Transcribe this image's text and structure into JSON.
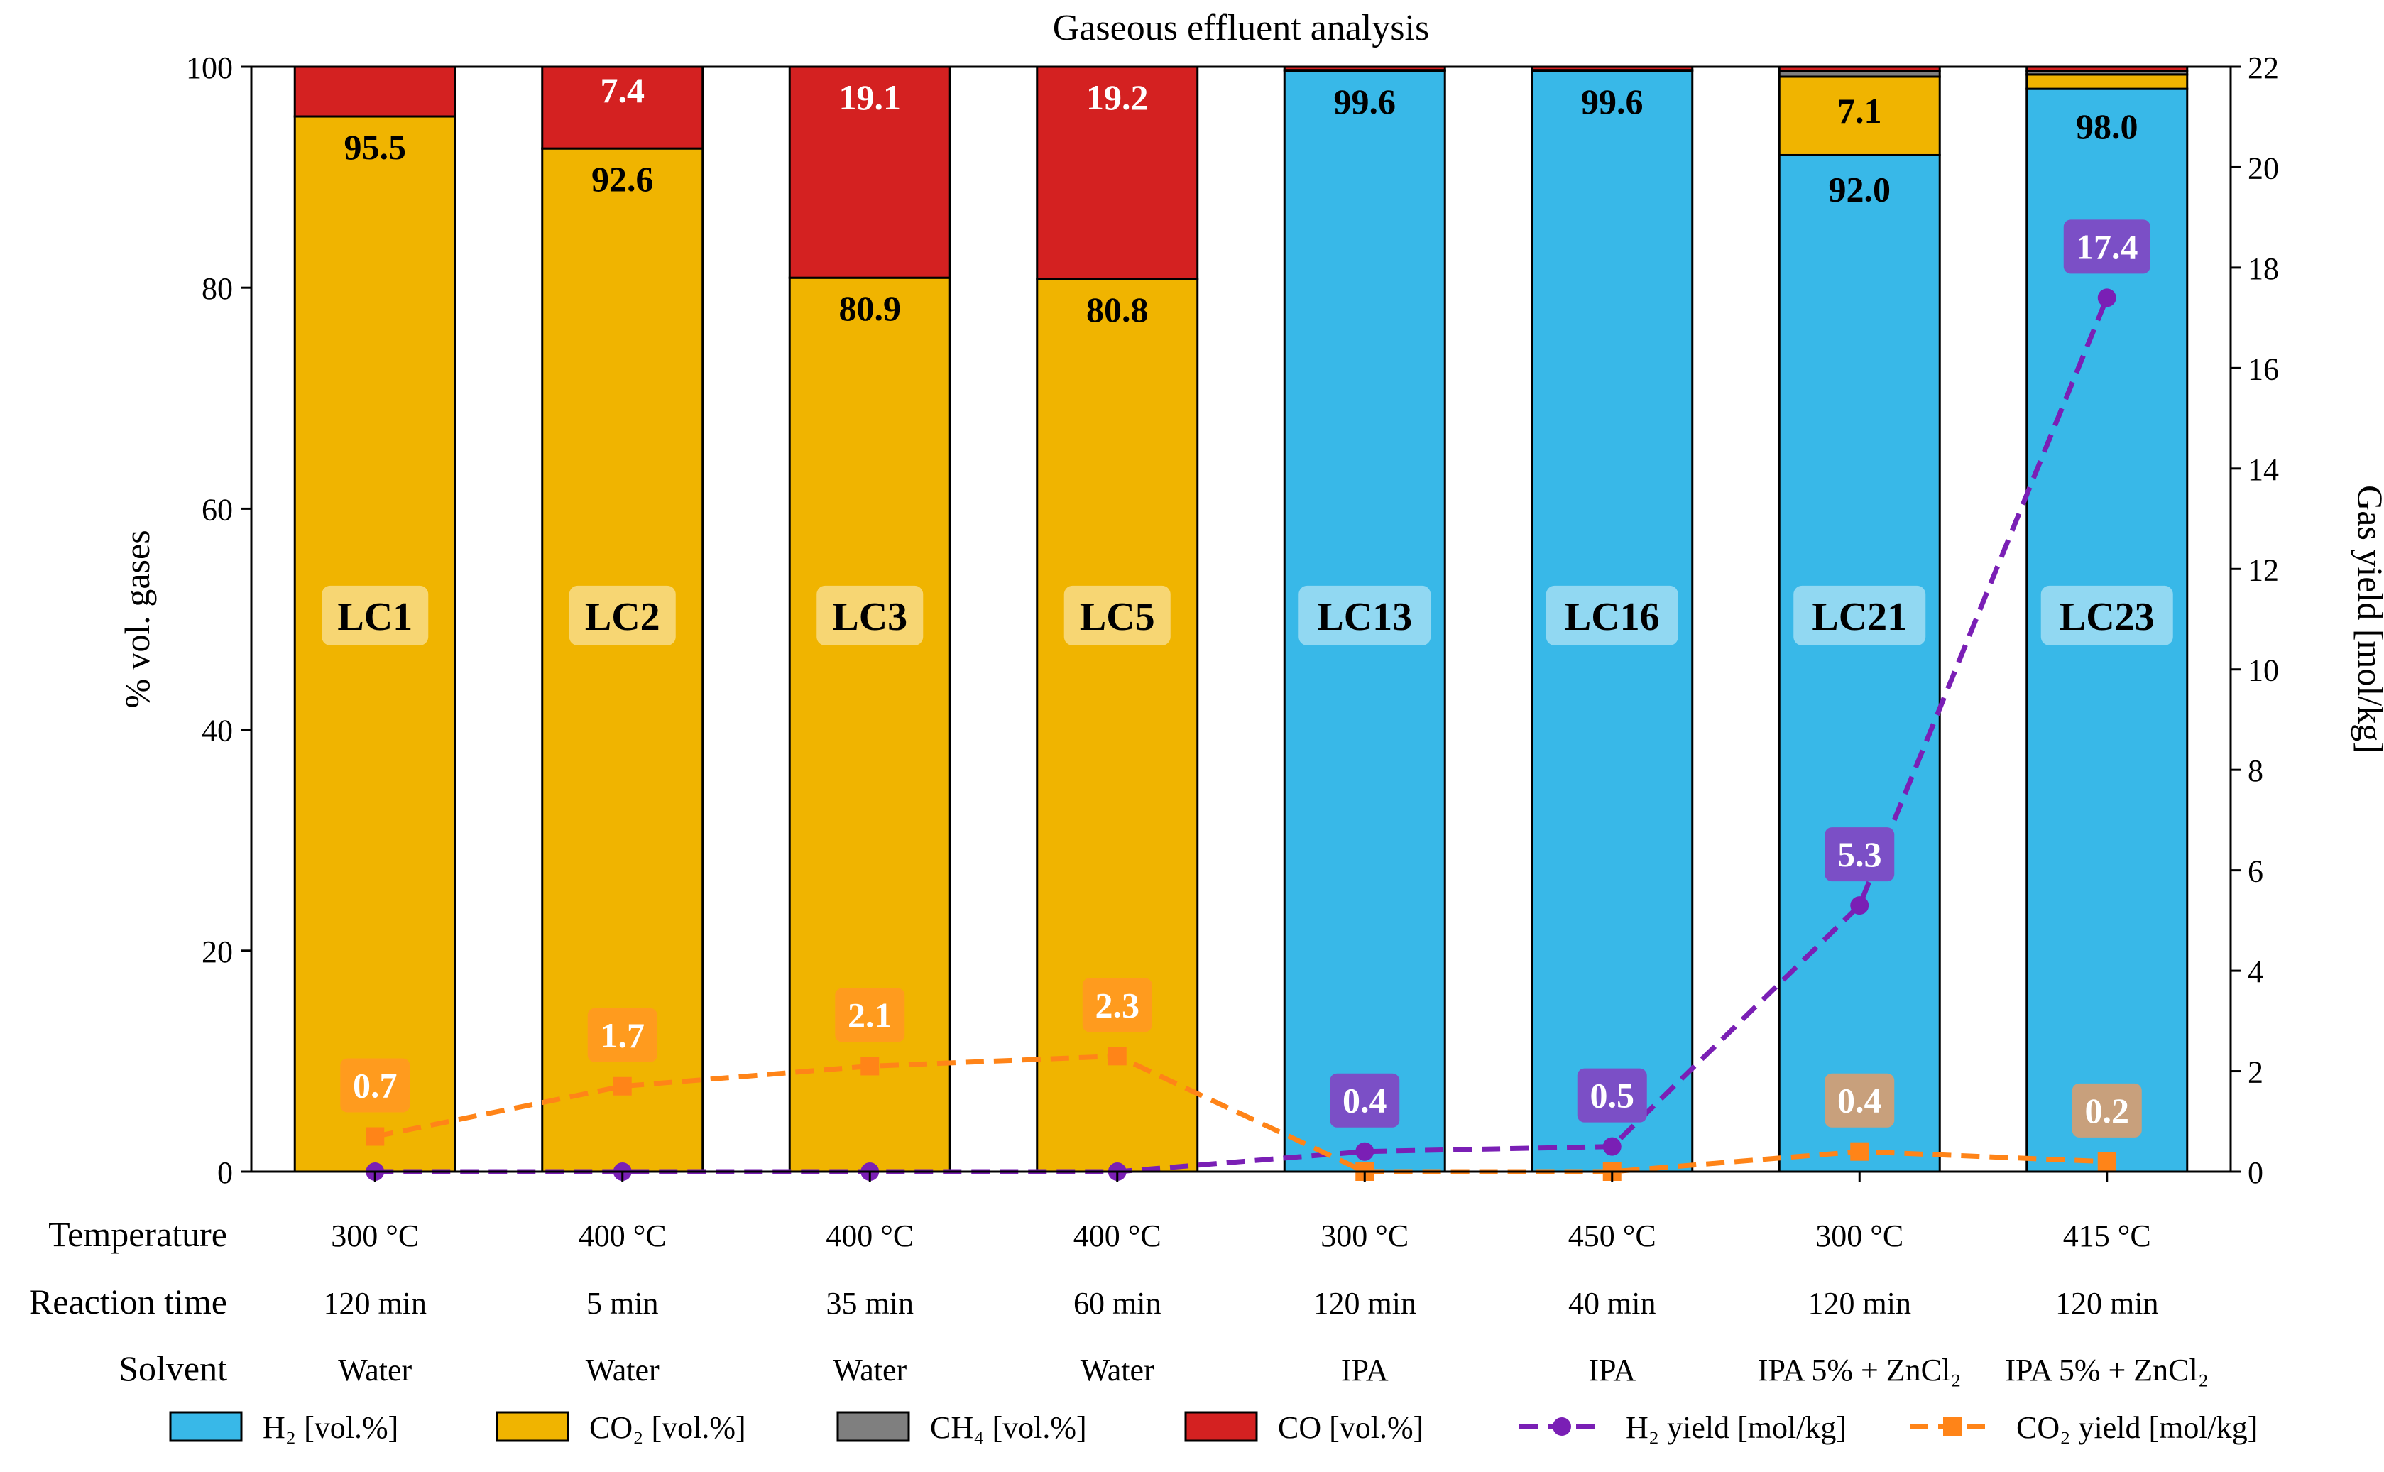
{
  "chart_data": {
    "type": "bar",
    "title": "Gaseous effluent analysis",
    "ylabel": "% vol. gases",
    "y2label": "Gas yield [mol/kg]",
    "ylim": [
      0,
      100
    ],
    "y2lim": [
      0,
      22
    ],
    "yticks": [
      "0",
      "20",
      "40",
      "60",
      "80",
      "100"
    ],
    "y2ticks": [
      "0",
      "2",
      "4",
      "6",
      "8",
      "10",
      "12",
      "14",
      "16",
      "18",
      "20",
      "22"
    ],
    "categories": [
      "LC1",
      "LC2",
      "LC3",
      "LC5",
      "LC13",
      "LC16",
      "LC21",
      "LC23"
    ],
    "row_labels": [
      "Temperature",
      "Reaction time",
      "Solvent"
    ],
    "temperature": [
      "300 °C",
      "400 °C",
      "400 °C",
      "400 °C",
      "300 °C",
      "450 °C",
      "300 °C",
      "415 °C"
    ],
    "reaction_time": [
      "120 min",
      "5 min",
      "35 min",
      "60 min",
      "120 min",
      "40 min",
      "120 min",
      "120 min"
    ],
    "solvent": [
      "Water",
      "Water",
      "Water",
      "Water",
      "IPA",
      "IPA",
      "IPA 5% + ZnCl₂",
      "IPA 5% + ZnCl₂"
    ],
    "series": [
      {
        "name": "H₂ [vol.%]",
        "color": "#38b8e8",
        "values": [
          0,
          0,
          0,
          0,
          99.6,
          99.6,
          92.0,
          98.0
        ]
      },
      {
        "name": "CO₂ [vol.%]",
        "color": "#f0b400",
        "values": [
          95.5,
          92.6,
          80.9,
          80.8,
          0,
          0,
          7.1,
          1.3
        ]
      },
      {
        "name": "CH₄ [vol.%]",
        "color": "#7f7f7f",
        "values": [
          0,
          0,
          0,
          0,
          0.1,
          0.1,
          0.5,
          0.3
        ]
      },
      {
        "name": "CO [vol.%]",
        "color": "#d42121",
        "values": [
          4.5,
          7.4,
          19.1,
          19.2,
          0.3,
          0.3,
          0.4,
          0.4
        ]
      }
    ],
    "bar_labels": [
      [
        "95.5"
      ],
      [
        "92.6",
        "7.4"
      ],
      [
        "80.9",
        "19.1"
      ],
      [
        "80.8",
        "19.2"
      ],
      [
        "99.6"
      ],
      [
        "99.6"
      ],
      [
        "92.0",
        "7.1"
      ],
      [
        "98.0"
      ]
    ],
    "lines": [
      {
        "name": "H₂ yield [mol/kg]",
        "color": "#7a1fb5",
        "label_color": "#7b4fc6",
        "values": [
          0,
          0,
          0,
          0,
          0.4,
          0.5,
          5.3,
          17.4
        ],
        "labels": [
          "",
          "",
          "",
          "",
          "0.4",
          "0.5",
          "5.3",
          "17.4"
        ]
      },
      {
        "name": "CO₂ yield [mol/kg]",
        "color": "#ff8418",
        "label_color": "#ff9b1e",
        "values": [
          0.7,
          1.7,
          2.1,
          2.3,
          0,
          0,
          0.4,
          0.2
        ],
        "labels": [
          "0.7",
          "1.7",
          "2.1",
          "2.3",
          "",
          "",
          "0.4",
          "0.2"
        ]
      }
    ],
    "legend": [
      "H₂ [vol.%]",
      "CO₂ [vol.%]",
      "CH₄ [vol.%]",
      "CO [vol.%]",
      "H₂ yield [mol/kg]",
      "CO₂ yield [mol/kg]"
    ],
    "legend_position": "bottom"
  }
}
